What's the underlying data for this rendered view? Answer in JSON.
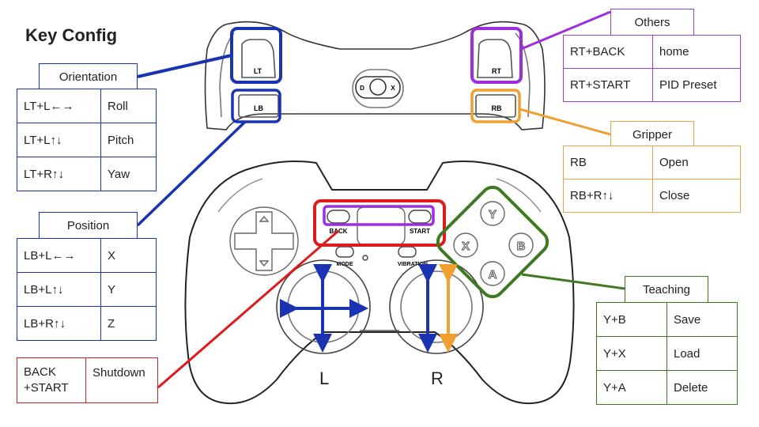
{
  "title": "Key Config",
  "controller": {
    "shoulder": {
      "lt": "LT",
      "lb": "LB",
      "rt": "RT",
      "rb": "RB",
      "d": "D",
      "x": "X"
    },
    "labels": {
      "back": "BACK",
      "start": "START",
      "mode": "MODE",
      "vibration": "VIBRATION"
    },
    "face": {
      "y": "Y",
      "x": "X",
      "b": "B",
      "a": "A"
    },
    "sticks": {
      "left": "L",
      "right": "R"
    }
  },
  "colors": {
    "blue": "#1a33b3",
    "purple": "#9b3fd0",
    "orange": "#f0a04a",
    "green": "#3d7a22",
    "red": "#d62020"
  },
  "orientation": {
    "title": "Orientation",
    "rows": [
      {
        "key": "LT+L←→",
        "action": "Roll"
      },
      {
        "key": "LT+L↑↓",
        "action": "Pitch"
      },
      {
        "key": "LT+R↑↓",
        "action": "Yaw"
      }
    ]
  },
  "position": {
    "title": "Position",
    "rows": [
      {
        "key": "LB+L←→",
        "action": "X"
      },
      {
        "key": "LB+L↑↓",
        "action": "Y"
      },
      {
        "key": "LB+R↑↓",
        "action": "Z"
      }
    ]
  },
  "shutdown": {
    "key_line1": "BACK",
    "key_line2": "+START",
    "action": "Shutdown"
  },
  "others": {
    "title": "Others",
    "rows": [
      {
        "key": "RT+BACK",
        "action": "home"
      },
      {
        "key": "RT+START",
        "action": "PID Preset"
      }
    ]
  },
  "gripper": {
    "title": "Gripper",
    "rows": [
      {
        "key": "RB",
        "action": "Open"
      },
      {
        "key": "RB+R↑↓",
        "action": "Close"
      }
    ]
  },
  "teaching": {
    "title": "Teaching",
    "rows": [
      {
        "key": "Y+B",
        "action": "Save"
      },
      {
        "key": "Y+X",
        "action": "Load"
      },
      {
        "key": "Y+A",
        "action": "Delete"
      }
    ]
  }
}
